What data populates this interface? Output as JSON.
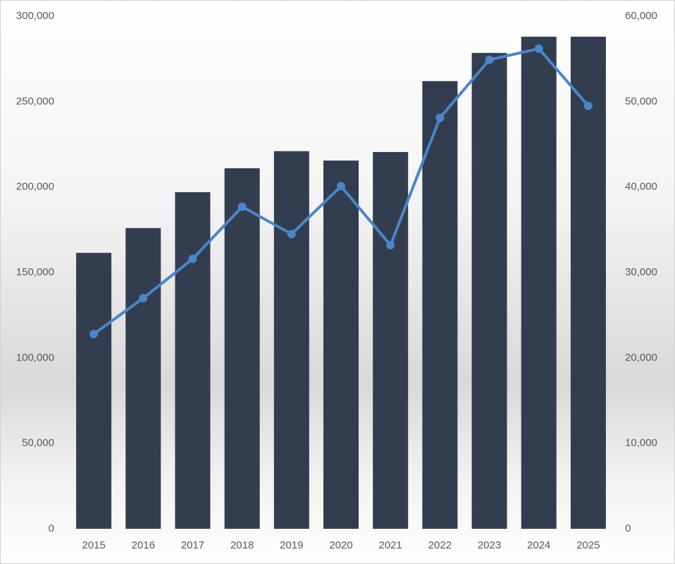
{
  "chart_data": {
    "type": "combo",
    "categories": [
      "2015",
      "2016",
      "2017",
      "2018",
      "2019",
      "2020",
      "2021",
      "2022",
      "2023",
      "2024",
      "2025"
    ],
    "series": [
      {
        "type": "bar",
        "color": "#333d50",
        "values": [
          161500,
          176000,
          197000,
          211000,
          221000,
          215500,
          220500,
          262000,
          278500,
          288000,
          288000
        ]
      },
      {
        "type": "line",
        "axis": "y2",
        "color": "#4a86c8",
        "values": [
          22800,
          27000,
          31600,
          37700,
          34500,
          40100,
          33200,
          48100,
          54900,
          56200,
          49500
        ]
      }
    ],
    "ylim": [
      0,
      300000
    ],
    "yticks": [
      0,
      {
        "value": 50000,
        "label": "50,000"
      },
      {
        "value": 100000,
        "label": "100,000"
      },
      {
        "value": 150000,
        "label": "150,000"
      },
      {
        "value": 200000,
        "label": "200,000"
      },
      {
        "value": 250000,
        "label": "250,000"
      },
      {
        "value": 300000,
        "label": "300,000"
      }
    ],
    "y2lim": [
      0,
      60000
    ],
    "y2ticks": [
      0,
      {
        "value": 10000,
        "label": "10,000"
      },
      {
        "value": 20000,
        "label": "20,000"
      },
      {
        "value": 30000,
        "label": "30,000"
      },
      {
        "value": 40000,
        "label": "40,000"
      },
      {
        "value": 50000,
        "label": "50,000"
      },
      {
        "value": 60000,
        "label": "60,000"
      }
    ],
    "grid": false
  }
}
